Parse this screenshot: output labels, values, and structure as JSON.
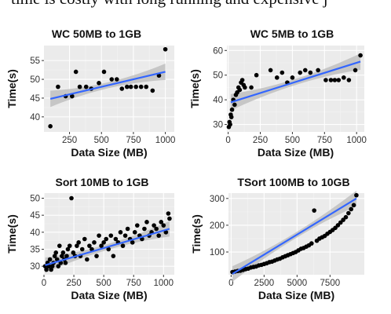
{
  "caption": "time is costly with long running and expensive j",
  "chart_data": [
    {
      "type": "scatter",
      "title": "WC 50MB to 1GB",
      "xlabel": "Data Size (MB)",
      "ylabel": "Time(s)",
      "xlim": [
        50,
        1070
      ],
      "ylim": [
        36,
        59
      ],
      "xticks": [
        250,
        500,
        750,
        1000
      ],
      "yticks": [
        40,
        45,
        50,
        55
      ],
      "grid": true,
      "x": [
        100,
        160,
        220,
        270,
        300,
        330,
        380,
        420,
        480,
        520,
        580,
        620,
        660,
        700,
        730,
        770,
        810,
        850,
        900,
        950,
        1000
      ],
      "y": [
        37.5,
        48,
        45.5,
        45.5,
        52,
        48,
        48,
        47.5,
        49,
        52,
        50,
        50,
        47.5,
        48,
        48,
        48,
        48,
        48,
        47,
        51,
        58
      ],
      "fit_line": {
        "x": [
          100,
          1000
        ],
        "y": [
          44.8,
          52
        ]
      }
    },
    {
      "type": "scatter",
      "title": "WC 5MB to 1GB",
      "xlabel": "Data Size (MB)",
      "ylabel": "Time(s)",
      "xlim": [
        -10,
        1060
      ],
      "ylim": [
        27,
        62
      ],
      "xticks": [
        0,
        250,
        500,
        750,
        1000
      ],
      "yticks": [
        30,
        40,
        50,
        60
      ],
      "grid": true,
      "x": [
        5,
        10,
        15,
        20,
        25,
        30,
        40,
        50,
        60,
        70,
        80,
        90,
        100,
        110,
        120,
        130,
        180,
        220,
        330,
        380,
        420,
        460,
        500,
        560,
        600,
        640,
        700,
        760,
        800,
        830,
        860,
        900,
        940,
        990,
        1030
      ],
      "y": [
        29,
        31,
        30,
        34,
        33,
        36,
        40,
        38,
        42,
        43,
        45,
        44,
        47,
        48,
        46,
        45,
        45,
        50,
        52,
        49,
        51,
        47,
        49,
        51,
        52,
        51,
        52,
        48,
        48,
        48,
        48,
        49,
        48,
        52,
        58
      ],
      "fit_line": {
        "x": [
          20,
          1030
        ],
        "y": [
          39,
          55.5
        ]
      }
    },
    {
      "type": "scatter",
      "title": "Sort 10MB to 1GB",
      "xlabel": "Data Size (MB)",
      "ylabel": "Time(s)",
      "xlim": [
        0,
        1090
      ],
      "ylim": [
        27.5,
        51.5
      ],
      "xticks": [
        0,
        250,
        500,
        750,
        1000
      ],
      "yticks": [
        30,
        35,
        40,
        45,
        50
      ],
      "grid": true,
      "x": [
        10,
        20,
        30,
        40,
        50,
        60,
        70,
        80,
        90,
        100,
        110,
        120,
        130,
        140,
        150,
        160,
        170,
        180,
        190,
        200,
        215,
        230,
        245,
        260,
        275,
        290,
        305,
        320,
        340,
        360,
        380,
        400,
        420,
        440,
        460,
        480,
        500,
        520,
        540,
        560,
        580,
        600,
        620,
        640,
        660,
        680,
        700,
        720,
        740,
        760,
        780,
        800,
        820,
        840,
        860,
        880,
        900,
        920,
        940,
        960,
        980,
        1000,
        1020,
        1040,
        1050
      ],
      "y": [
        30,
        29,
        31,
        30,
        32,
        29,
        30,
        31,
        33,
        34,
        32,
        30,
        36,
        31,
        33,
        34,
        32,
        31,
        33,
        35,
        36,
        50,
        34,
        33,
        36,
        37,
        33,
        35,
        38,
        32,
        36,
        35,
        37,
        33,
        39,
        36,
        37,
        38,
        35,
        39,
        33,
        38,
        37,
        40,
        36,
        39,
        41,
        38,
        37,
        40,
        42,
        39,
        38,
        41,
        43,
        39,
        40,
        42,
        41,
        39,
        43,
        42,
        40,
        45.5,
        44
      ],
      "fit_line": {
        "x": [
          10,
          1050
        ],
        "y": [
          30.3,
          41
        ]
      }
    },
    {
      "type": "scatter",
      "title": "TSort 100MB to 10GB",
      "xlabel": "Data Size (MB)",
      "ylabel": "Time(s)",
      "xlim": [
        -200,
        10100
      ],
      "ylim": [
        15,
        320
      ],
      "xticks": [
        0,
        2500,
        5000,
        7500
      ],
      "xtick_labels": [
        "0",
        "2500",
        "5000",
        "7500"
      ],
      "yticks": [
        100,
        200,
        300
      ],
      "grid": true,
      "x": [
        100,
        300,
        500,
        700,
        900,
        1100,
        1300,
        1500,
        1700,
        1900,
        2100,
        2300,
        2500,
        2700,
        2900,
        3100,
        3300,
        3500,
        3700,
        3900,
        4100,
        4300,
        4500,
        4700,
        4900,
        5100,
        5300,
        5500,
        5700,
        5900,
        6100,
        6300,
        6500,
        6700,
        6900,
        7100,
        7300,
        7500,
        7700,
        7900,
        8100,
        8300,
        8500,
        8700,
        8900,
        9100,
        9300,
        9500
      ],
      "y": [
        25,
        27,
        29,
        30,
        33,
        36,
        38,
        42,
        44,
        46,
        50,
        52,
        55,
        58,
        62,
        64,
        68,
        72,
        75,
        80,
        84,
        88,
        92,
        96,
        100,
        106,
        112,
        115,
        120,
        125,
        132,
        255,
        142,
        150,
        155,
        160,
        168,
        175,
        182,
        190,
        200,
        210,
        220,
        230,
        245,
        260,
        275,
        312
      ],
      "fit_line": {
        "x": [
          100,
          9500
        ],
        "y": [
          18,
          300
        ]
      }
    }
  ],
  "colors": {
    "panel_bg": "#ebebeb",
    "grid_major": "#ffffff",
    "fit_line": "#3366ff",
    "ribbon": "#bdbdbd",
    "points": "#000000"
  }
}
